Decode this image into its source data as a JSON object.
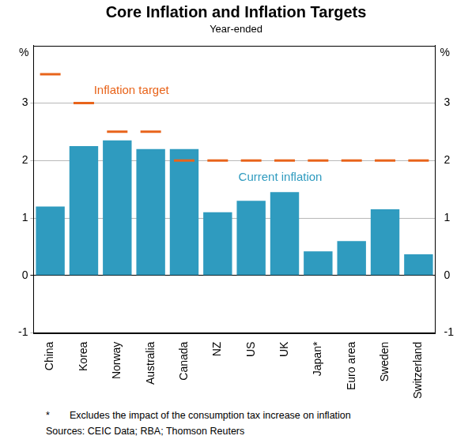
{
  "chart_data": {
    "type": "bar",
    "title": "Core Inflation and Inflation Targets",
    "subtitle": "Year-ended",
    "y_label": "%",
    "y2_label": "%",
    "categories": [
      "China",
      "Korea",
      "Norway",
      "Australia",
      "Canada",
      "NZ",
      "US",
      "UK",
      "Japan*",
      "Euro area",
      "Sweden",
      "Switzerland"
    ],
    "series": [
      {
        "name": "Current inflation",
        "type": "bar",
        "color": "#2f9bbf",
        "values": [
          1.2,
          2.25,
          2.35,
          2.2,
          2.2,
          1.1,
          1.3,
          1.45,
          0.42,
          0.6,
          1.15,
          0.37
        ]
      },
      {
        "name": "Inflation target",
        "type": "line",
        "marker": "dash",
        "line_style": "none",
        "color": "#e8641b",
        "axis": "y",
        "values": [
          3.5,
          3.0,
          2.5,
          2.5,
          2.0,
          2.0,
          2.0,
          2.0,
          2.0,
          2.0,
          2.0,
          2.0
        ]
      }
    ],
    "ylim": [
      -1,
      4
    ],
    "yticks": [
      -1,
      0,
      1,
      2,
      3
    ],
    "y2lim": [
      -1,
      4
    ],
    "y2ticks": [
      -1,
      0,
      1,
      2,
      3
    ],
    "grid": true,
    "footnotes": [
      {
        "mark": "*",
        "text": "Excludes the impact of the consumption tax increase on inflation"
      }
    ],
    "sources": "Sources:  CEIC Data; RBA; Thomson Reuters"
  }
}
